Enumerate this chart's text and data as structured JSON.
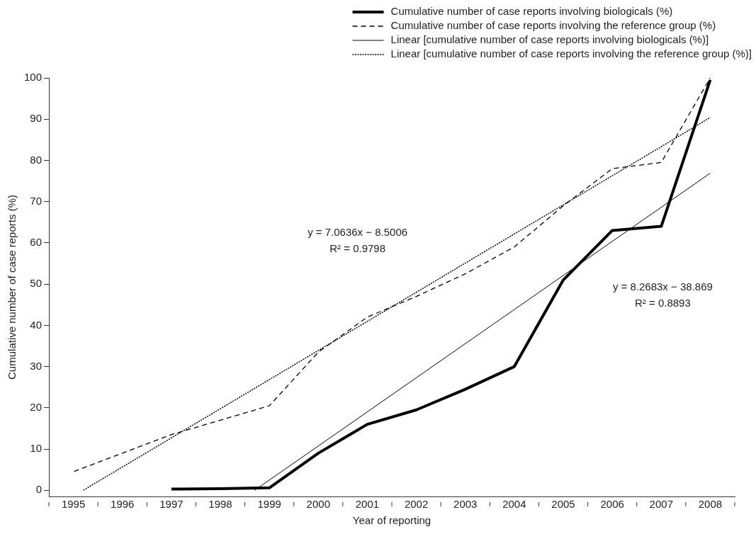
{
  "chart_data": {
    "type": "line",
    "xlabel": "Year of reporting",
    "ylabel": "Cumulative number of case reports (%)",
    "x": [
      1995,
      1996,
      1997,
      1998,
      1999,
      2000,
      2001,
      2002,
      2003,
      2004,
      2005,
      2006,
      2007,
      2008
    ],
    "xlim": [
      1994.5,
      2008.5
    ],
    "xticks": [
      1995,
      1996,
      1997,
      1998,
      1999,
      2000,
      2001,
      2002,
      2003,
      2004,
      2005,
      2006,
      2007,
      2008
    ],
    "ylim": [
      -1.5,
      100
    ],
    "yticks": [
      0,
      10,
      20,
      30,
      40,
      50,
      60,
      70,
      80,
      90,
      100
    ],
    "grid": false,
    "legend": "top right",
    "marker": "none",
    "series": [
      {
        "name": "Cumulative number of case reports involving biologicals (%)",
        "color": "#000000",
        "line_style": "solid",
        "values": [
          null,
          null,
          0.3,
          0.4,
          0.6,
          9,
          16,
          19.5,
          24.5,
          30,
          51,
          63,
          64,
          99.5
        ]
      },
      {
        "name": "Cumulative number of case reports involving the reference group (%)",
        "color": "#000000",
        "line_style": "dashed",
        "values": [
          4.5,
          9,
          13.5,
          17,
          20.5,
          33.5,
          42,
          47,
          52.5,
          59,
          69,
          78,
          79.5,
          100
        ]
      },
      {
        "name": "Linear [cumulative number of case reports involving biologicals (%)]",
        "type": "line",
        "color": "#000000",
        "line_style": "solid",
        "x": [
          1998.7,
          2008
        ],
        "values": [
          0,
          76.9
        ]
      },
      {
        "name": "Linear [cumulative number of case reports involving the reference group (%)]",
        "type": "line",
        "color": "#000000",
        "line_style": "dotted",
        "x": [
          1995.2,
          2008
        ],
        "values": [
          0,
          90.4
        ]
      }
    ],
    "annotations": [
      "y = 7.0636x − 8.5006",
      "R² = 0.9798",
      "y = 8.2683x − 38.869",
      "R² = 0.8893"
    ]
  }
}
